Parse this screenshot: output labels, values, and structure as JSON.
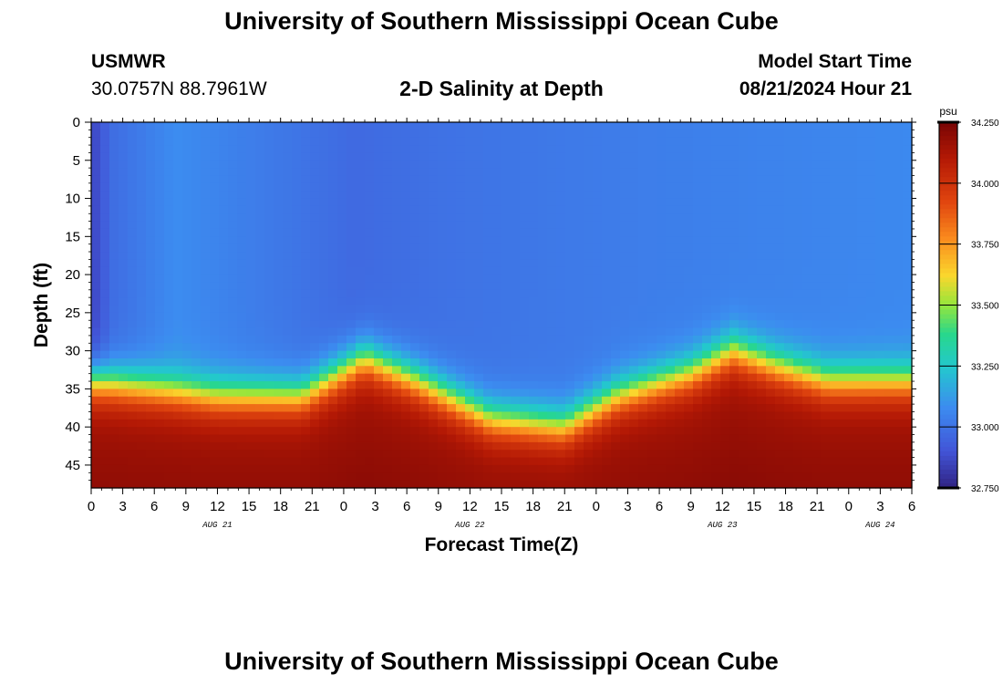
{
  "page": {
    "title": "University of Southern Mississippi Ocean Cube",
    "footer_title": "University of Southern Mississippi Ocean Cube"
  },
  "station": {
    "id": "USMWR",
    "coords": "30.0757N  88.7961W"
  },
  "model_start": {
    "label": "Model Start Time",
    "value": "08/21/2024 Hour 21"
  },
  "chart_data": {
    "type": "heatmap",
    "title": "2-D Salinity at Depth",
    "xlabel": "Forecast Time(Z)",
    "ylabel": "Depth (ft)",
    "x_unit": "hours since AUG 21 00Z",
    "xlim": [
      0,
      78
    ],
    "ylim": [
      0,
      48
    ],
    "y_inverted": true,
    "x_ticks": [
      0,
      3,
      6,
      9,
      12,
      15,
      18,
      21,
      24,
      27,
      30,
      33,
      36,
      39,
      42,
      45,
      48,
      51,
      54,
      57,
      60,
      63,
      66,
      69,
      72,
      75,
      78
    ],
    "x_tick_labels": [
      "0",
      "3",
      "6",
      "9",
      "12",
      "15",
      "18",
      "21",
      "0",
      "3",
      "6",
      "9",
      "12",
      "15",
      "18",
      "21",
      "0",
      "3",
      "6",
      "9",
      "12",
      "15",
      "18",
      "21",
      "0",
      "3",
      "6"
    ],
    "y_ticks": [
      0,
      5,
      10,
      15,
      20,
      25,
      30,
      35,
      40,
      45
    ],
    "y_tick_labels": [
      "0",
      "5",
      "10",
      "15",
      "20",
      "25",
      "30",
      "35",
      "40",
      "45"
    ],
    "day_labels": [
      {
        "label": "AUG 21",
        "hour": 12
      },
      {
        "label": "AUG 22",
        "hour": 36
      },
      {
        "label": "AUG 23",
        "hour": 60
      },
      {
        "label": "AUG 24",
        "hour": 75
      }
    ],
    "colorbar": {
      "unit": "psu",
      "range": [
        32.75,
        34.25
      ],
      "ticks": [
        34.25,
        34.0,
        33.75,
        33.5,
        33.25,
        33.0,
        32.75
      ],
      "tick_labels": [
        "34.250",
        "34.000",
        "33.750",
        "33.500",
        "33.250",
        "33.000",
        "32.750"
      ]
    },
    "halocline_depth_ft": [
      {
        "hour": 0,
        "depth": 34
      },
      {
        "hour": 12,
        "depth": 36
      },
      {
        "hour": 20,
        "depth": 36
      },
      {
        "hour": 26,
        "depth": 31
      },
      {
        "hour": 31,
        "depth": 34
      },
      {
        "hour": 38,
        "depth": 39
      },
      {
        "hour": 45,
        "depth": 40
      },
      {
        "hour": 50,
        "depth": 36
      },
      {
        "hour": 57,
        "depth": 33
      },
      {
        "hour": 61,
        "depth": 30
      },
      {
        "hour": 65,
        "depth": 32
      },
      {
        "hour": 70,
        "depth": 34
      },
      {
        "hour": 78,
        "depth": 34
      }
    ],
    "bottom_salinity_psu": 34.15,
    "surface_salinity_psu": [
      {
        "hour": 0,
        "value": 32.85
      },
      {
        "hour": 2,
        "value": 32.98
      },
      {
        "hour": 8,
        "value": 33.08
      },
      {
        "hour": 25,
        "value": 32.97
      },
      {
        "hour": 35,
        "value": 33.0
      },
      {
        "hour": 50,
        "value": 33.03
      },
      {
        "hour": 78,
        "value": 33.07
      }
    ]
  }
}
